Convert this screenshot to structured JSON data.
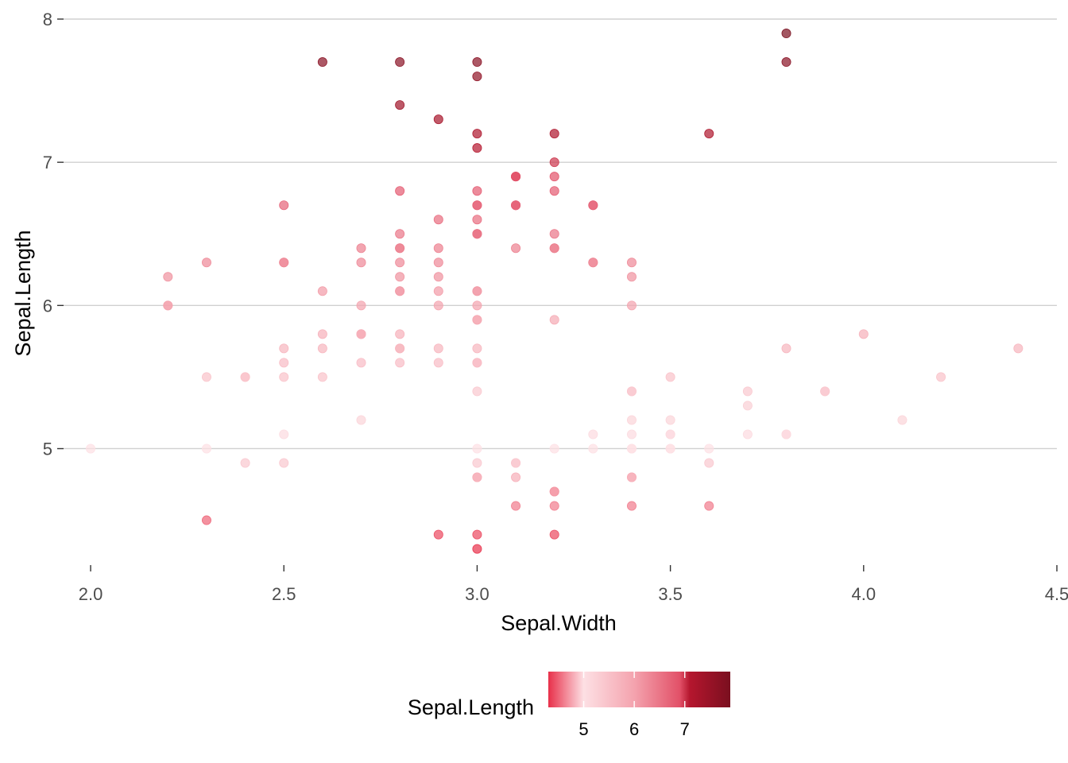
{
  "chart_data": {
    "type": "scatter",
    "xlabel": "Sepal.Width",
    "ylabel": "Sepal.Length",
    "xlim": [
      1.93,
      4.5
    ],
    "ylim": [
      4.22,
      8.05
    ],
    "x_ticks": [
      2.0,
      2.5,
      3.0,
      3.5,
      4.0,
      4.5
    ],
    "x_tick_labels": [
      "2.0",
      "2.5",
      "3.0",
      "3.5",
      "4.0",
      "4.5"
    ],
    "y_ticks": [
      5,
      6,
      7,
      8
    ],
    "y_tick_labels": [
      "5",
      "6",
      "7",
      "8"
    ],
    "grid": "horizontal-major",
    "legend": {
      "title": "Sepal.Length",
      "placement": "bottom",
      "type": "colorbar",
      "range": [
        4.3,
        7.9
      ],
      "ticks": [
        5,
        6,
        7
      ],
      "tick_labels": [
        "5",
        "6",
        "7"
      ],
      "gradient": [
        {
          "value": 4.3,
          "color": "#e8304a"
        },
        {
          "value": 5.0,
          "color": "#fde0e4"
        },
        {
          "value": 6.0,
          "color": "#f4a3ae"
        },
        {
          "value": 6.9,
          "color": "#e25168"
        },
        {
          "value": 7.1,
          "color": "#b5162e"
        },
        {
          "value": 7.9,
          "color": "#7a0f1f"
        }
      ]
    },
    "point_alpha": 0.7,
    "points": [
      [
        5.1,
        3.5
      ],
      [
        4.9,
        3.0
      ],
      [
        4.7,
        3.2
      ],
      [
        4.6,
        3.1
      ],
      [
        5.0,
        3.6
      ],
      [
        5.4,
        3.9
      ],
      [
        4.6,
        3.4
      ],
      [
        5.0,
        3.4
      ],
      [
        4.4,
        2.9
      ],
      [
        4.9,
        3.1
      ],
      [
        5.4,
        3.7
      ],
      [
        4.8,
        3.4
      ],
      [
        4.8,
        3.0
      ],
      [
        4.3,
        3.0
      ],
      [
        5.8,
        4.0
      ],
      [
        5.7,
        4.4
      ],
      [
        5.4,
        3.9
      ],
      [
        5.1,
        3.5
      ],
      [
        5.7,
        3.8
      ],
      [
        5.1,
        3.8
      ],
      [
        5.4,
        3.4
      ],
      [
        5.1,
        3.7
      ],
      [
        4.6,
        3.6
      ],
      [
        5.1,
        3.3
      ],
      [
        4.8,
        3.4
      ],
      [
        5.0,
        3.0
      ],
      [
        5.0,
        3.4
      ],
      [
        5.2,
        3.5
      ],
      [
        5.2,
        3.4
      ],
      [
        4.7,
        3.2
      ],
      [
        4.8,
        3.1
      ],
      [
        5.4,
        3.4
      ],
      [
        5.2,
        4.1
      ],
      [
        5.5,
        4.2
      ],
      [
        4.9,
        3.1
      ],
      [
        5.0,
        3.2
      ],
      [
        5.5,
        3.5
      ],
      [
        4.9,
        3.6
      ],
      [
        4.4,
        3.0
      ],
      [
        5.1,
        3.4
      ],
      [
        5.0,
        3.5
      ],
      [
        4.5,
        2.3
      ],
      [
        4.4,
        3.2
      ],
      [
        5.0,
        3.5
      ],
      [
        5.1,
        3.8
      ],
      [
        4.8,
        3.0
      ],
      [
        5.1,
        3.8
      ],
      [
        4.6,
        3.2
      ],
      [
        5.3,
        3.7
      ],
      [
        5.0,
        3.3
      ],
      [
        7.0,
        3.2
      ],
      [
        6.4,
        3.2
      ],
      [
        6.9,
        3.1
      ],
      [
        5.5,
        2.3
      ],
      [
        6.5,
        2.8
      ],
      [
        5.7,
        2.8
      ],
      [
        6.3,
        3.3
      ],
      [
        4.9,
        2.4
      ],
      [
        6.6,
        2.9
      ],
      [
        5.2,
        2.7
      ],
      [
        5.0,
        2.0
      ],
      [
        5.9,
        3.0
      ],
      [
        6.0,
        2.2
      ],
      [
        6.1,
        2.9
      ],
      [
        5.6,
        2.9
      ],
      [
        6.7,
        3.1
      ],
      [
        5.6,
        3.0
      ],
      [
        5.8,
        2.7
      ],
      [
        6.2,
        2.2
      ],
      [
        5.6,
        2.5
      ],
      [
        5.9,
        3.2
      ],
      [
        6.1,
        2.8
      ],
      [
        6.3,
        2.5
      ],
      [
        6.1,
        2.8
      ],
      [
        6.4,
        2.9
      ],
      [
        6.6,
        3.0
      ],
      [
        6.8,
        2.8
      ],
      [
        6.7,
        3.0
      ],
      [
        6.0,
        2.9
      ],
      [
        5.7,
        2.6
      ],
      [
        5.5,
        2.4
      ],
      [
        5.5,
        2.4
      ],
      [
        5.8,
        2.7
      ],
      [
        6.0,
        2.7
      ],
      [
        5.4,
        3.0
      ],
      [
        6.0,
        3.4
      ],
      [
        6.7,
        3.1
      ],
      [
        6.3,
        2.3
      ],
      [
        5.6,
        3.0
      ],
      [
        5.5,
        2.5
      ],
      [
        5.5,
        2.6
      ],
      [
        6.1,
        3.0
      ],
      [
        5.8,
        2.6
      ],
      [
        5.0,
        2.3
      ],
      [
        5.6,
        2.7
      ],
      [
        5.7,
        3.0
      ],
      [
        5.7,
        2.9
      ],
      [
        6.2,
        2.9
      ],
      [
        5.1,
        2.5
      ],
      [
        5.7,
        2.8
      ],
      [
        6.3,
        3.3
      ],
      [
        5.8,
        2.7
      ],
      [
        7.1,
        3.0
      ],
      [
        6.3,
        2.9
      ],
      [
        6.5,
        3.0
      ],
      [
        7.6,
        3.0
      ],
      [
        4.9,
        2.5
      ],
      [
        7.3,
        2.9
      ],
      [
        6.7,
        2.5
      ],
      [
        7.2,
        3.6
      ],
      [
        6.5,
        3.2
      ],
      [
        6.4,
        2.7
      ],
      [
        6.8,
        3.0
      ],
      [
        5.7,
        2.5
      ],
      [
        5.8,
        2.8
      ],
      [
        6.4,
        3.2
      ],
      [
        6.5,
        3.0
      ],
      [
        7.7,
        3.8
      ],
      [
        7.7,
        2.6
      ],
      [
        6.0,
        2.2
      ],
      [
        6.9,
        3.2
      ],
      [
        5.6,
        2.8
      ],
      [
        7.7,
        2.8
      ],
      [
        6.3,
        2.7
      ],
      [
        6.7,
        3.3
      ],
      [
        7.2,
        3.2
      ],
      [
        6.2,
        2.8
      ],
      [
        6.1,
        3.0
      ],
      [
        6.4,
        2.8
      ],
      [
        7.2,
        3.0
      ],
      [
        7.4,
        2.8
      ],
      [
        7.9,
        3.8
      ],
      [
        6.4,
        2.8
      ],
      [
        6.3,
        2.8
      ],
      [
        6.1,
        2.6
      ],
      [
        7.7,
        3.0
      ],
      [
        6.3,
        3.4
      ],
      [
        6.4,
        3.1
      ],
      [
        6.0,
        3.0
      ],
      [
        6.9,
        3.1
      ],
      [
        6.7,
        3.1
      ],
      [
        6.9,
        3.1
      ],
      [
        5.8,
        2.7
      ],
      [
        6.8,
        3.2
      ],
      [
        6.7,
        3.3
      ],
      [
        6.7,
        3.0
      ],
      [
        6.3,
        2.5
      ],
      [
        6.5,
        3.0
      ],
      [
        6.2,
        3.4
      ],
      [
        5.9,
        3.0
      ]
    ]
  }
}
